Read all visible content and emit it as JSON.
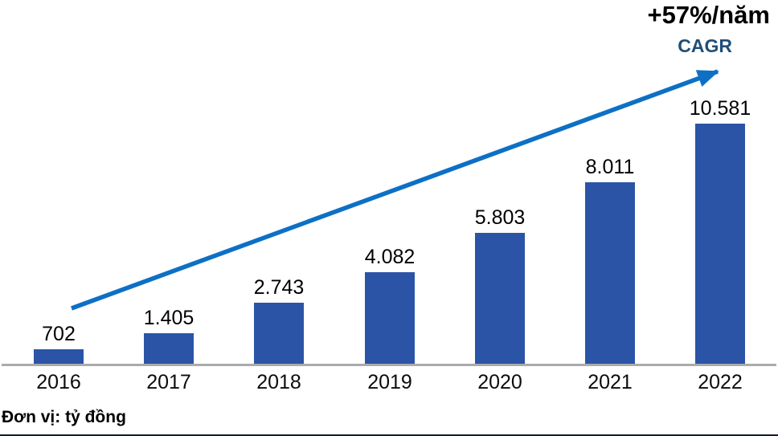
{
  "annotations": {
    "growth_rate": "+57%/năm",
    "cagr_label": "CAGR"
  },
  "footer": {
    "unit_label": "Đơn vị: tỷ đồng"
  },
  "colors": {
    "bar": "#2b54a7",
    "arrow": "#0d70c5",
    "cagr_text": "#1f4e79",
    "axis_line": "#ababab",
    "bottom_rule": "#111b2e",
    "label_text": "#000000"
  },
  "chart_data": {
    "type": "bar",
    "title": "",
    "xlabel": "",
    "ylabel": "",
    "unit": "tỷ đồng",
    "categories": [
      "2016",
      "2017",
      "2018",
      "2019",
      "2020",
      "2021",
      "2022"
    ],
    "values": [
      702,
      1405,
      2743,
      4082,
      5803,
      8011,
      10581
    ],
    "value_labels": [
      "702",
      "1.405",
      "2.743",
      "4.082",
      "5.803",
      "8.011",
      "10.581"
    ],
    "annotation": "+57%/năm CAGR",
    "ylim": [
      0,
      10581
    ],
    "grid": false,
    "legend": false
  }
}
